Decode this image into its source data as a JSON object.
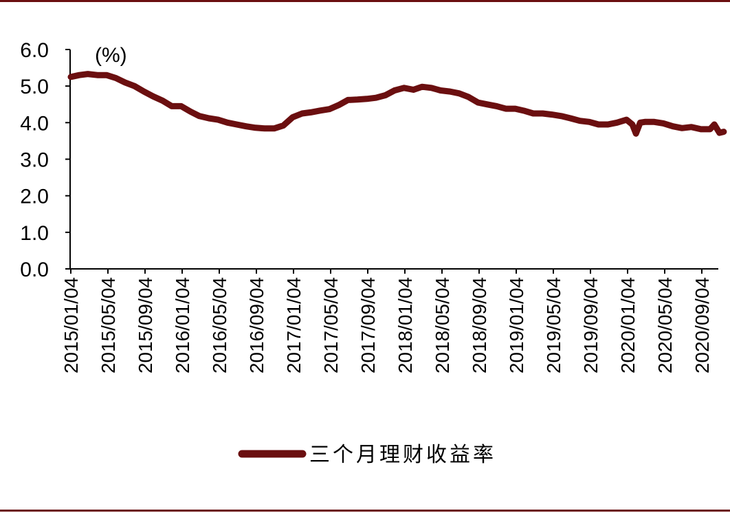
{
  "chart_data": {
    "type": "line",
    "unit_label": "(%)",
    "ylim": [
      0,
      6
    ],
    "yticks": [
      "0.0",
      "1.0",
      "2.0",
      "3.0",
      "4.0",
      "5.0",
      "6.0"
    ],
    "xticks": [
      "2015/01/04",
      "2015/05/04",
      "2015/09/04",
      "2016/01/04",
      "2016/05/04",
      "2016/09/04",
      "2017/01/04",
      "2017/05/04",
      "2017/09/04",
      "2018/01/04",
      "2018/05/04",
      "2018/09/04",
      "2019/01/04",
      "2019/05/04",
      "2019/09/04",
      "2020/01/04",
      "2020/05/04",
      "2020/09/04"
    ],
    "x_range": [
      "2015/01/04",
      "2020/11/15"
    ],
    "grid": false,
    "legend_position": "bottom",
    "color": "#6b0f10",
    "series": [
      {
        "name": "三个月理财收益率",
        "points": [
          [
            "2015/01/04",
            5.25
          ],
          [
            "2015/02/01",
            5.3
          ],
          [
            "2015/03/01",
            5.33
          ],
          [
            "2015/04/01",
            5.3
          ],
          [
            "2015/05/01",
            5.3
          ],
          [
            "2015/06/01",
            5.22
          ],
          [
            "2015/07/01",
            5.1
          ],
          [
            "2015/08/01",
            5.0
          ],
          [
            "2015/09/01",
            4.85
          ],
          [
            "2015/10/01",
            4.72
          ],
          [
            "2015/11/01",
            4.6
          ],
          [
            "2015/12/01",
            4.45
          ],
          [
            "2016/01/01",
            4.45
          ],
          [
            "2016/02/01",
            4.3
          ],
          [
            "2016/03/01",
            4.18
          ],
          [
            "2016/04/01",
            4.12
          ],
          [
            "2016/05/01",
            4.08
          ],
          [
            "2016/06/01",
            4.0
          ],
          [
            "2016/07/01",
            3.95
          ],
          [
            "2016/08/01",
            3.9
          ],
          [
            "2016/09/01",
            3.86
          ],
          [
            "2016/10/01",
            3.84
          ],
          [
            "2016/11/01",
            3.84
          ],
          [
            "2016/12/01",
            3.92
          ],
          [
            "2017/01/01",
            4.15
          ],
          [
            "2017/02/01",
            4.25
          ],
          [
            "2017/03/01",
            4.28
          ],
          [
            "2017/04/01",
            4.33
          ],
          [
            "2017/05/01",
            4.37
          ],
          [
            "2017/06/01",
            4.48
          ],
          [
            "2017/07/01",
            4.62
          ],
          [
            "2017/08/01",
            4.63
          ],
          [
            "2017/09/01",
            4.65
          ],
          [
            "2017/10/01",
            4.68
          ],
          [
            "2017/11/01",
            4.75
          ],
          [
            "2017/12/01",
            4.88
          ],
          [
            "2018/01/01",
            4.95
          ],
          [
            "2018/02/01",
            4.9
          ],
          [
            "2018/03/01",
            4.98
          ],
          [
            "2018/04/01",
            4.95
          ],
          [
            "2018/05/01",
            4.88
          ],
          [
            "2018/06/01",
            4.85
          ],
          [
            "2018/07/01",
            4.8
          ],
          [
            "2018/08/01",
            4.7
          ],
          [
            "2018/09/01",
            4.55
          ],
          [
            "2018/10/01",
            4.5
          ],
          [
            "2018/11/01",
            4.45
          ],
          [
            "2018/12/01",
            4.38
          ],
          [
            "2019/01/01",
            4.38
          ],
          [
            "2019/02/01",
            4.32
          ],
          [
            "2019/03/01",
            4.25
          ],
          [
            "2019/04/01",
            4.25
          ],
          [
            "2019/05/01",
            4.22
          ],
          [
            "2019/06/01",
            4.18
          ],
          [
            "2019/07/01",
            4.12
          ],
          [
            "2019/08/01",
            4.05
          ],
          [
            "2019/09/01",
            4.02
          ],
          [
            "2019/10/01",
            3.95
          ],
          [
            "2019/11/01",
            3.95
          ],
          [
            "2019/12/01",
            4.0
          ],
          [
            "2020/01/01",
            4.08
          ],
          [
            "2020/01/20",
            3.95
          ],
          [
            "2020/02/01",
            3.7
          ],
          [
            "2020/02/15",
            4.0
          ],
          [
            "2020/03/01",
            4.02
          ],
          [
            "2020/04/01",
            4.02
          ],
          [
            "2020/05/01",
            3.98
          ],
          [
            "2020/06/01",
            3.9
          ],
          [
            "2020/07/01",
            3.85
          ],
          [
            "2020/08/01",
            3.88
          ],
          [
            "2020/09/01",
            3.82
          ],
          [
            "2020/10/01",
            3.82
          ],
          [
            "2020/10/15",
            3.95
          ],
          [
            "2020/11/01",
            3.72
          ],
          [
            "2020/11/15",
            3.75
          ]
        ]
      }
    ]
  }
}
